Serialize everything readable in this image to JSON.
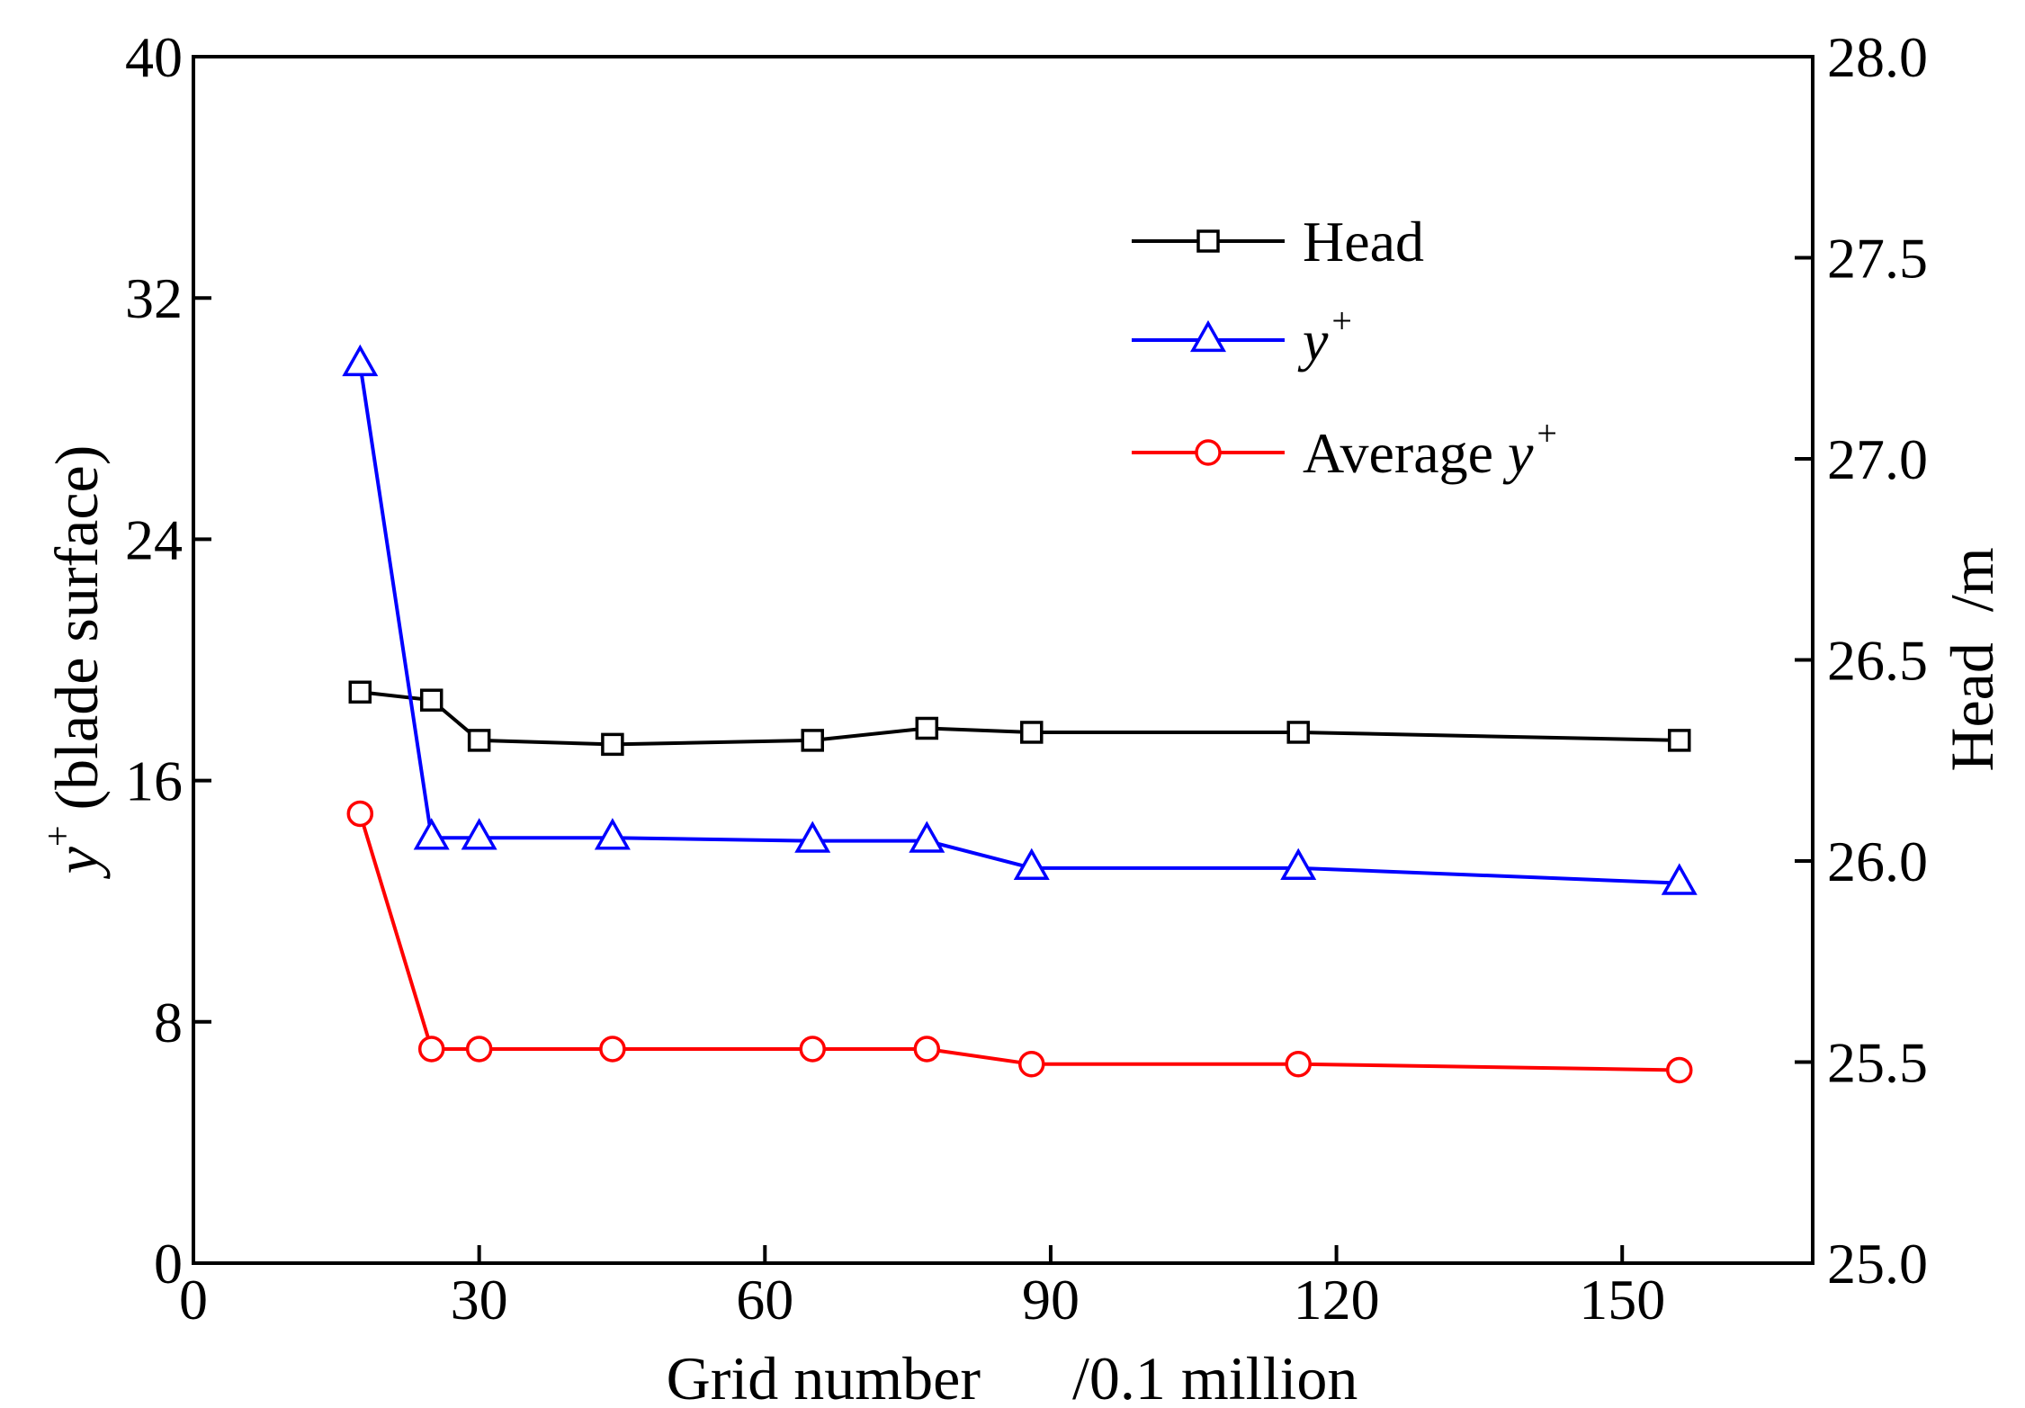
{
  "chart_data": {
    "type": "line",
    "title": "",
    "xlabel": "Grid number",
    "xlabel_unit": "/0.1 million",
    "ylabel": {
      "symbol": "y",
      "sup": "+",
      "rest": " (blade surface)"
    },
    "y2label": {
      "name": "Head",
      "unit": "/m"
    },
    "xlim": [
      0,
      170
    ],
    "ylim": [
      0,
      40
    ],
    "y2lim": [
      25.0,
      28.0
    ],
    "x_ticks": [
      0,
      30,
      60,
      90,
      120,
      150
    ],
    "x_tick_labels": [
      "0",
      "30",
      "60",
      "90",
      "120",
      "150"
    ],
    "y_ticks": [
      0,
      8,
      16,
      24,
      32,
      40
    ],
    "y_tick_labels": [
      "0",
      "8",
      "16",
      "24",
      "32",
      "40"
    ],
    "y2_ticks": [
      25.0,
      25.5,
      26.0,
      26.5,
      27.0,
      27.5,
      28.0
    ],
    "y2_tick_labels": [
      "25.0",
      "25.5",
      "26.0",
      "26.5",
      "27.0",
      "27.5",
      "28.0"
    ],
    "grid": false,
    "legend_position": "top-right",
    "x": [
      17.5,
      25,
      30,
      44,
      65,
      77,
      88,
      116,
      156
    ],
    "series": [
      {
        "name": "Head",
        "legend": {
          "text": "Head",
          "sup": ""
        },
        "axis": "right",
        "marker": "square",
        "color": "#000000",
        "values": [
          26.42,
          26.4,
          26.3,
          26.29,
          26.3,
          26.33,
          26.32,
          26.32,
          26.3
        ]
      },
      {
        "name": "y+",
        "legend": {
          "text": "y",
          "sup": "+"
        },
        "axis": "left",
        "marker": "triangle",
        "color": "#0000ff",
        "values": [
          29.8,
          14.1,
          14.1,
          14.1,
          14.0,
          14.0,
          13.1,
          13.1,
          12.6
        ]
      },
      {
        "name": "Average y+",
        "legend": {
          "text": "Average y",
          "sup": "+"
        },
        "axis": "left",
        "marker": "circle",
        "color": "#ff0000",
        "values": [
          14.9,
          7.1,
          7.1,
          7.1,
          7.1,
          7.1,
          6.6,
          6.6,
          6.4
        ]
      }
    ]
  }
}
